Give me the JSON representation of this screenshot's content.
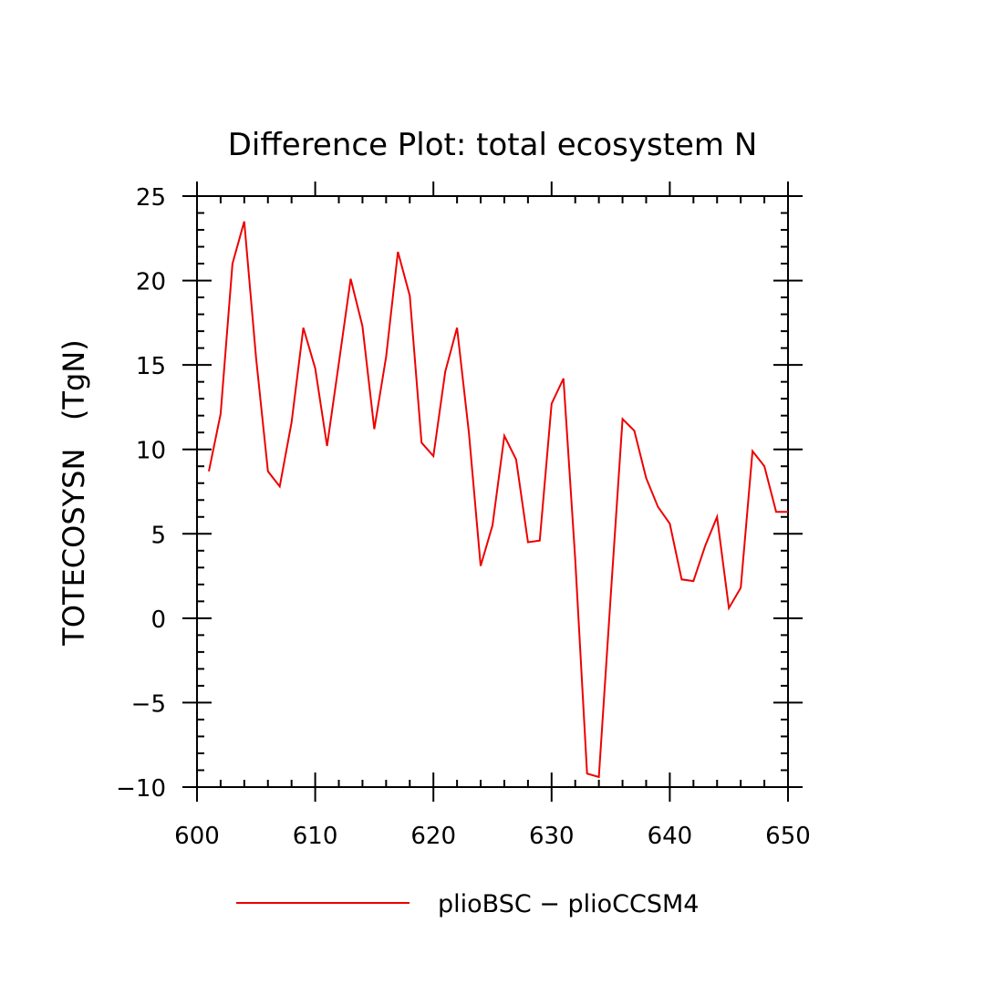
{
  "chart_data": {
    "type": "line",
    "title": "Difference Plot: total ecosystem N",
    "xlabel": "",
    "ylabel": "TOTECOSYSN   (TgN)",
    "xlim": [
      600,
      650
    ],
    "ylim": [
      -10,
      25
    ],
    "x_ticks": [
      600,
      610,
      620,
      630,
      640,
      650
    ],
    "x_tick_labels": [
      "600",
      "610",
      "620",
      "630",
      "640",
      "650"
    ],
    "y_ticks": [
      -10,
      -5,
      0,
      5,
      10,
      15,
      20,
      25
    ],
    "y_tick_labels": [
      "−10",
      "−5",
      "0",
      "5",
      "10",
      "15",
      "20",
      "25"
    ],
    "grid": false,
    "legend_position": "bottom",
    "line_color": "#ee0000",
    "series": [
      {
        "name": "plioBSC − plioCCSM4",
        "x": [
          601,
          602,
          603,
          604,
          605,
          606,
          607,
          608,
          609,
          610,
          611,
          612,
          613,
          614,
          615,
          616,
          617,
          618,
          619,
          620,
          621,
          622,
          623,
          624,
          625,
          626,
          627,
          628,
          629,
          630,
          631,
          632,
          633,
          634,
          635,
          636,
          637,
          638,
          639,
          640,
          641,
          642,
          643,
          644,
          645,
          646,
          647,
          648,
          649,
          650
        ],
        "values": [
          8.7,
          12.1,
          21.0,
          23.5,
          15.4,
          8.7,
          7.8,
          11.6,
          17.2,
          14.8,
          10.2,
          15.1,
          20.1,
          17.3,
          11.2,
          15.5,
          21.7,
          19.1,
          10.4,
          9.6,
          14.6,
          17.2,
          11.0,
          3.1,
          5.5,
          10.8,
          9.4,
          4.5,
          4.6,
          12.7,
          14.2,
          3.5,
          -9.2,
          -9.4,
          1.3,
          11.8,
          11.1,
          8.3,
          6.6,
          5.6,
          2.3,
          2.2,
          4.3,
          6.0,
          0.6,
          1.8,
          9.9,
          9.0,
          6.3,
          6.3
        ]
      }
    ]
  }
}
